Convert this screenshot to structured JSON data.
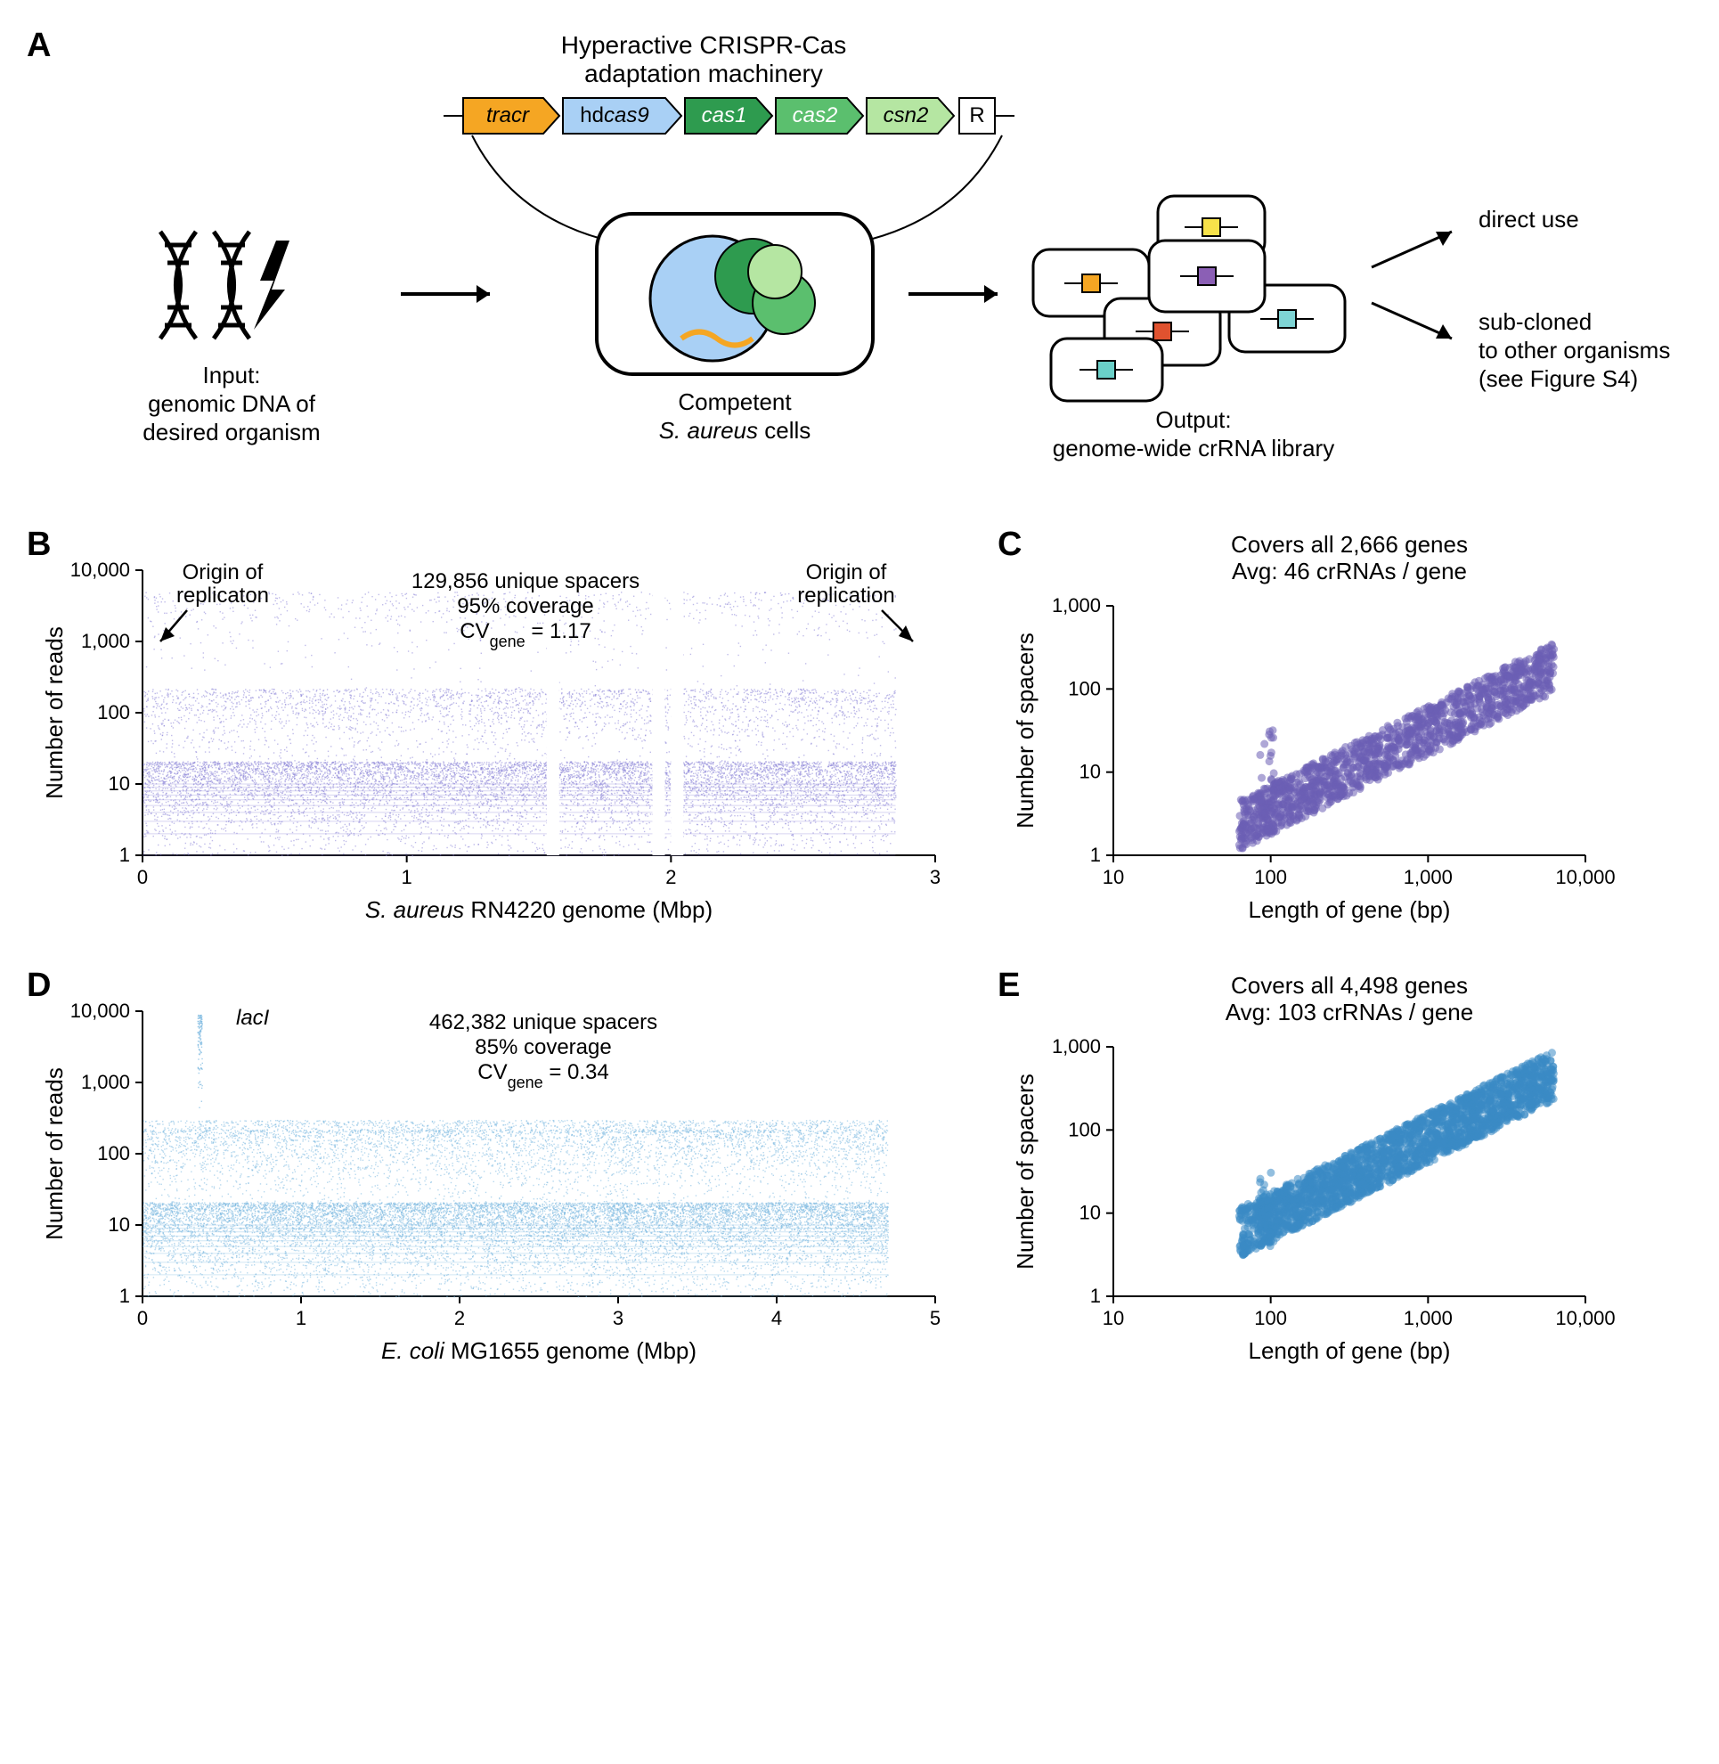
{
  "panelA": {
    "label": "A",
    "top_title": "Hyperactive CRISPR-Cas\nadaptation machinery",
    "genes": [
      {
        "name": "tracr",
        "fill": "#f5a623",
        "italic": true
      },
      {
        "name": "hdcas9",
        "fill": "#a9d0f5",
        "italic_part": "cas9"
      },
      {
        "name": "cas1",
        "fill": "#2e9b4f",
        "italic": true,
        "text_color": "#ffffff"
      },
      {
        "name": "cas2",
        "fill": "#5bbf6e",
        "italic": true,
        "text_color": "#ffffff"
      },
      {
        "name": "csn2",
        "fill": "#b5e6a2",
        "italic": true
      },
      {
        "name": "R",
        "fill": "#ffffff",
        "italic": false
      }
    ],
    "input_label": "Input:\ngenomic DNA of\ndesired organism",
    "cell_label": "Competent\nS. aureus cells",
    "output_label": "Output:\ngenome-wide crRNA library",
    "right1": "direct use",
    "right2": "sub-cloned\nto other organisms\n(see Figure S4)"
  },
  "panelB": {
    "label": "B",
    "xlabel": "S. aureus RN4220 genome (Mbp)",
    "ylabel": "Number of reads",
    "anno_top_left": "Origin of\nreplicaton",
    "anno_top_right": "Origin of\nreplication",
    "anno_center": "129,856 unique spacers\n95% coverage\nCV",
    "anno_center_sub": "gene",
    "anno_center_val": " = 1.17",
    "color": "#8b84d7",
    "xlim": [
      0,
      3
    ],
    "xticks": [
      0,
      1,
      2,
      3
    ],
    "ylim": [
      1,
      10000
    ],
    "yticks": [
      1,
      10,
      100,
      1000,
      10000
    ],
    "ytick_labels": [
      "1",
      "10",
      "100",
      "1,000",
      "10,000"
    ]
  },
  "panelC": {
    "label": "C",
    "title": "Covers all 2,666 genes\nAvg: 46 crRNAs / gene",
    "xlabel": "Length of gene (bp)",
    "ylabel": "Number of spacers",
    "color": "#6b5fb5",
    "xlim": [
      10,
      10000
    ],
    "xticks": [
      10,
      100,
      1000,
      10000
    ],
    "xtick_labels": [
      "10",
      "100",
      "1,000",
      "10,000"
    ],
    "ylim": [
      1,
      1000
    ],
    "yticks": [
      1,
      10,
      100,
      1000
    ],
    "ytick_labels": [
      "1",
      "10",
      "100",
      "1,000"
    ]
  },
  "panelD": {
    "label": "D",
    "xlabel": "E. coli MG1655 genome (Mbp)",
    "ylabel": "Number of reads",
    "anno_top_left": "lacI",
    "anno_center": "462,382 unique spacers\n85% coverage\nCV",
    "anno_center_sub": "gene",
    "anno_center_val": " = 0.34",
    "color": "#7ab8e0",
    "xlim": [
      0,
      5
    ],
    "xticks": [
      0,
      1,
      2,
      3,
      4,
      5
    ],
    "ylim": [
      1,
      10000
    ],
    "yticks": [
      1,
      10,
      100,
      1000,
      10000
    ],
    "ytick_labels": [
      "1",
      "10",
      "100",
      "1,000",
      "10,000"
    ]
  },
  "panelE": {
    "label": "E",
    "title": "Covers all 4,498 genes\nAvg: 103 crRNAs / gene",
    "xlabel": "Length of gene (bp)",
    "ylabel": "Number of spacers",
    "color": "#3b8bc4",
    "xlim": [
      10,
      10000
    ],
    "xticks": [
      10,
      100,
      1000,
      10000
    ],
    "xtick_labels": [
      "10",
      "100",
      "1,000",
      "10,000"
    ],
    "ylim": [
      1,
      1000
    ],
    "yticks": [
      1,
      10,
      100,
      1000
    ],
    "ytick_labels": [
      "1",
      "10",
      "100",
      "1,000"
    ]
  }
}
